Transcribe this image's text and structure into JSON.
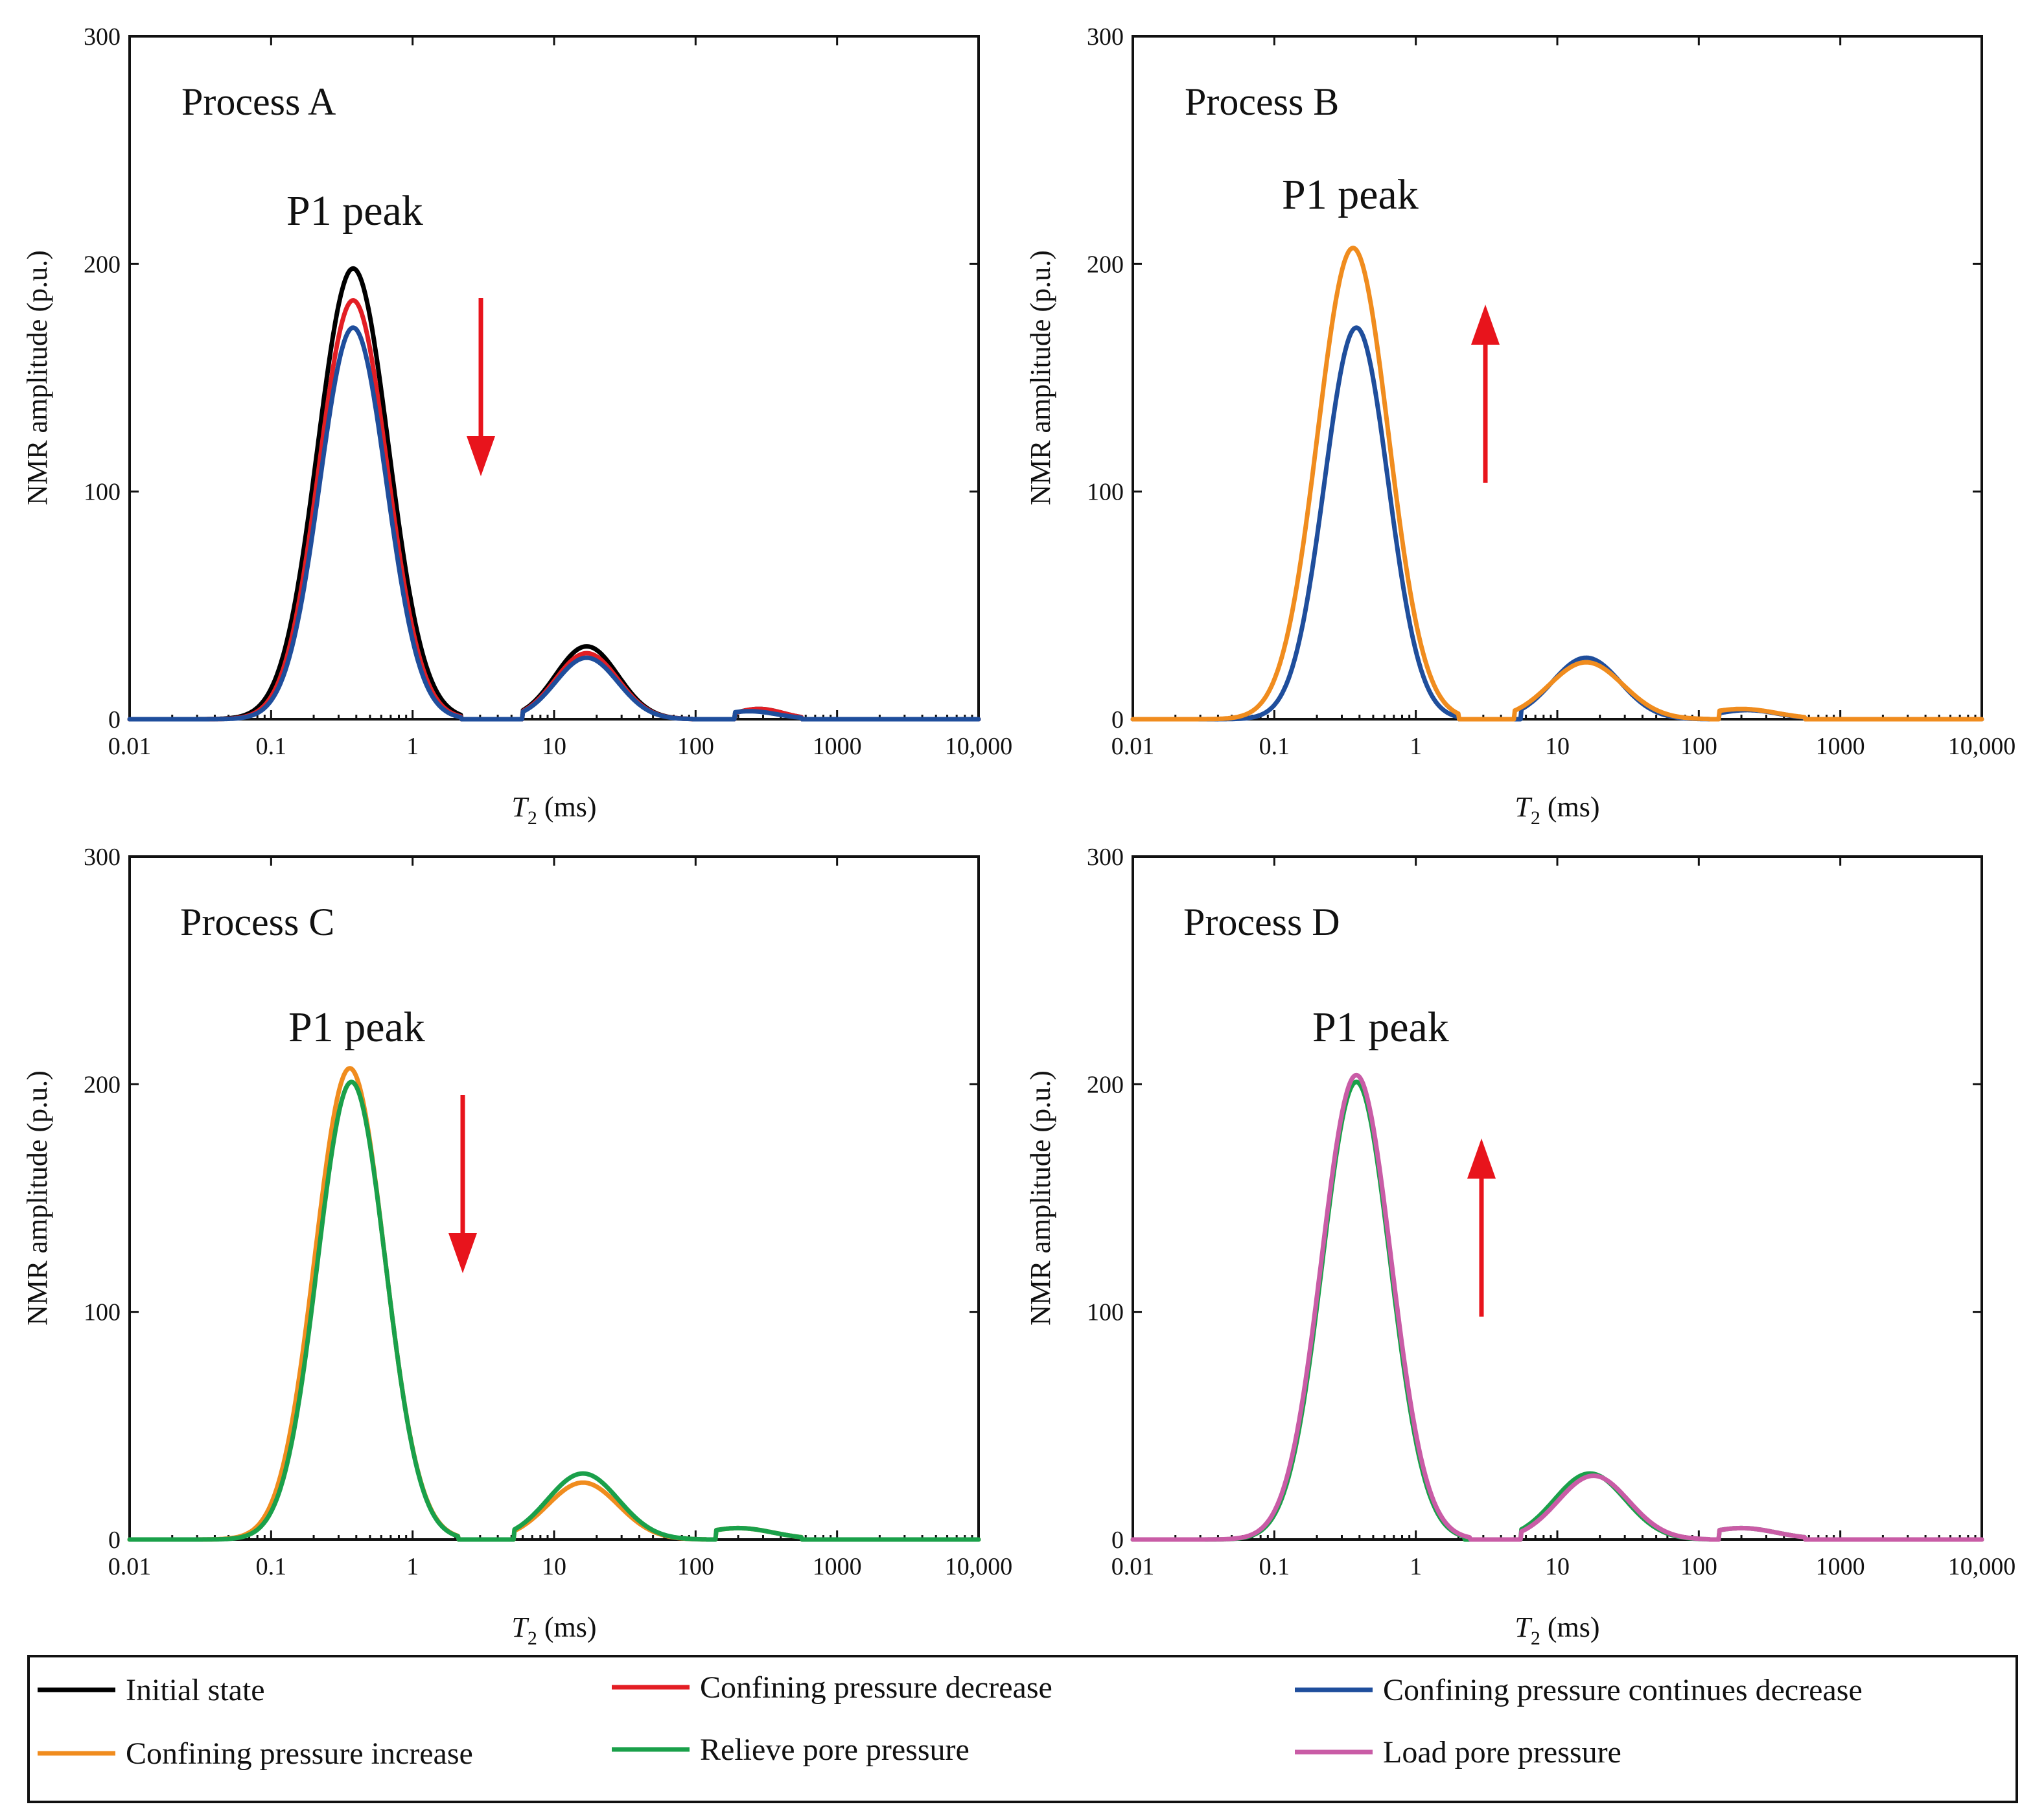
{
  "colors": {
    "initial": "#000000",
    "confining_decrease": "#e31e24",
    "confining_continues": "#1f4e9c",
    "confining_increase": "#f08c1e",
    "relieve_pore": "#1aa04a",
    "load_pore": "#c95ca6",
    "arrow": "#e8141c"
  },
  "legend": {
    "items": [
      {
        "key": "initial",
        "label": "Initial state"
      },
      {
        "key": "confining_decrease",
        "label": "Confining pressure  decrease"
      },
      {
        "key": "confining_continues",
        "label": "Confining pressure  continues decrease"
      },
      {
        "key": "confining_increase",
        "label": "Confining pressure increase"
      },
      {
        "key": "relieve_pore",
        "label": "Relieve pore pressure"
      },
      {
        "key": "load_pore",
        "label": "Load pore pressure"
      }
    ]
  },
  "chart_data": [
    {
      "type": "line",
      "title": "Process A",
      "annotation": "P1  peak",
      "arrow_direction": "down",
      "x_scale": "log",
      "xlim": [
        0.01,
        10000
      ],
      "ylim": [
        0,
        300
      ],
      "xticks": [
        "0.01",
        "0.1",
        "1",
        "10",
        "100",
        "1000",
        "10,000"
      ],
      "yticks": [
        "0",
        "100",
        "200",
        "300"
      ],
      "xlabel_main": "T",
      "xlabel_sub": "2",
      "xlabel_unit": " (ms)",
      "ylabel": "NMR amplitude (p.u.)",
      "series": [
        {
          "name": "Initial state",
          "color_key": "initial",
          "peaks": [
            {
              "mu": 0.38,
              "sigma": 0.25,
              "a": 198
            },
            {
              "mu": 17,
              "sigma": 0.22,
              "a": 32
            },
            {
              "mu": 280,
              "sigma": 0.17,
              "a": 4.5
            }
          ],
          "lo": [
            0.02,
            6.0,
            190
          ],
          "hi": [
            2.2,
            95,
            560
          ]
        },
        {
          "name": "Confining pressure  decrease",
          "color_key": "confining_decrease",
          "peaks": [
            {
              "mu": 0.38,
              "sigma": 0.24,
              "a": 184
            },
            {
              "mu": 17,
              "sigma": 0.22,
              "a": 29
            },
            {
              "mu": 280,
              "sigma": 0.17,
              "a": 4.5
            }
          ],
          "lo": [
            0.02,
            6.0,
            190
          ],
          "hi": [
            2.2,
            95,
            560
          ]
        },
        {
          "name": "Confining pressure  continues decrease",
          "color_key": "confining_continues",
          "peaks": [
            {
              "mu": 0.38,
              "sigma": 0.235,
              "a": 172
            },
            {
              "mu": 17,
              "sigma": 0.22,
              "a": 27
            },
            {
              "mu": 240,
              "sigma": 0.2,
              "a": 3.5
            }
          ],
          "lo": [
            0.02,
            6.0,
            190
          ],
          "hi": [
            2.2,
            95,
            560
          ]
        }
      ]
    },
    {
      "type": "line",
      "title": "Process B",
      "annotation": "P1  peak",
      "arrow_direction": "up",
      "x_scale": "log",
      "xlim": [
        0.01,
        10000
      ],
      "ylim": [
        0,
        300
      ],
      "xticks": [
        "0.01",
        "0.1",
        "1",
        "10",
        "100",
        "1000",
        "10,000"
      ],
      "yticks": [
        "0",
        "100",
        "200",
        "300"
      ],
      "xlabel_main": "T",
      "xlabel_sub": "2",
      "xlabel_unit": " (ms)",
      "ylabel": "NMR amplitude (p.u.)",
      "series": [
        {
          "name": "Confining pressure  continues decrease",
          "color_key": "confining_continues",
          "peaks": [
            {
              "mu": 0.38,
              "sigma": 0.225,
              "a": 172
            },
            {
              "mu": 16,
              "sigma": 0.24,
              "a": 27
            },
            {
              "mu": 220,
              "sigma": 0.22,
              "a": 4
            }
          ],
          "lo": [
            0.02,
            5.5,
            140
          ],
          "hi": [
            2.0,
            120,
            560
          ]
        },
        {
          "name": "Confining pressure increase",
          "color_key": "confining_increase",
          "peaks": [
            {
              "mu": 0.36,
              "sigma": 0.25,
              "a": 207
            },
            {
              "mu": 16,
              "sigma": 0.26,
              "a": 25
            },
            {
              "mu": 200,
              "sigma": 0.25,
              "a": 4.5
            }
          ],
          "lo": [
            0.02,
            5.0,
            140
          ],
          "hi": [
            2.0,
            120,
            560
          ]
        }
      ]
    },
    {
      "type": "line",
      "title": "Process C",
      "annotation": "P1  peak",
      "arrow_direction": "down",
      "x_scale": "log",
      "xlim": [
        0.01,
        10000
      ],
      "ylim": [
        0,
        300
      ],
      "xticks": [
        "0.01",
        "0.1",
        "1",
        "10",
        "100",
        "1000",
        "10,000"
      ],
      "yticks": [
        "0",
        "100",
        "200",
        "300"
      ],
      "xlabel_main": "T",
      "xlabel_sub": "2",
      "xlabel_unit": " (ms)",
      "ylabel": "NMR amplitude (p.u.)",
      "series": [
        {
          "name": "Confining pressure increase",
          "color_key": "confining_increase",
          "peaks": [
            {
              "mu": 0.36,
              "sigma": 0.245,
              "a": 207
            },
            {
              "mu": 16,
              "sigma": 0.25,
              "a": 25
            },
            {
              "mu": 200,
              "sigma": 0.25,
              "a": 5
            }
          ],
          "lo": [
            0.02,
            5.2,
            140
          ],
          "hi": [
            2.1,
            120,
            560
          ]
        },
        {
          "name": "Relieve pore pressure",
          "color_key": "relieve_pore",
          "peaks": [
            {
              "mu": 0.37,
              "sigma": 0.24,
              "a": 201
            },
            {
              "mu": 16,
              "sigma": 0.25,
              "a": 29
            },
            {
              "mu": 200,
              "sigma": 0.25,
              "a": 5
            }
          ],
          "lo": [
            0.02,
            5.2,
            140
          ],
          "hi": [
            2.1,
            120,
            560
          ]
        }
      ]
    },
    {
      "type": "line",
      "title": "Process D",
      "annotation": "P1  peak",
      "arrow_direction": "up",
      "x_scale": "log",
      "xlim": [
        0.01,
        10000
      ],
      "ylim": [
        0,
        300
      ],
      "xticks": [
        "0.01",
        "0.1",
        "1",
        "10",
        "100",
        "1000",
        "10,000"
      ],
      "yticks": [
        "0",
        "100",
        "200",
        "300"
      ],
      "xlabel_main": "T",
      "xlabel_sub": "2",
      "xlabel_unit": " (ms)",
      "ylabel": "NMR amplitude (p.u.)",
      "series": [
        {
          "name": "Relieve pore pressure",
          "color_key": "relieve_pore",
          "peaks": [
            {
              "mu": 0.38,
              "sigma": 0.24,
              "a": 201
            },
            {
              "mu": 17,
              "sigma": 0.25,
              "a": 29
            },
            {
              "mu": 200,
              "sigma": 0.25,
              "a": 5
            }
          ],
          "lo": [
            0.02,
            5.5,
            140
          ],
          "hi": [
            2.2,
            120,
            560
          ]
        },
        {
          "name": "Load pore pressure",
          "color_key": "load_pore",
          "peaks": [
            {
              "mu": 0.38,
              "sigma": 0.245,
              "a": 204
            },
            {
              "mu": 18,
              "sigma": 0.25,
              "a": 28
            },
            {
              "mu": 200,
              "sigma": 0.25,
              "a": 5
            }
          ],
          "lo": [
            0.02,
            5.5,
            140
          ],
          "hi": [
            2.4,
            120,
            560
          ]
        }
      ]
    }
  ]
}
